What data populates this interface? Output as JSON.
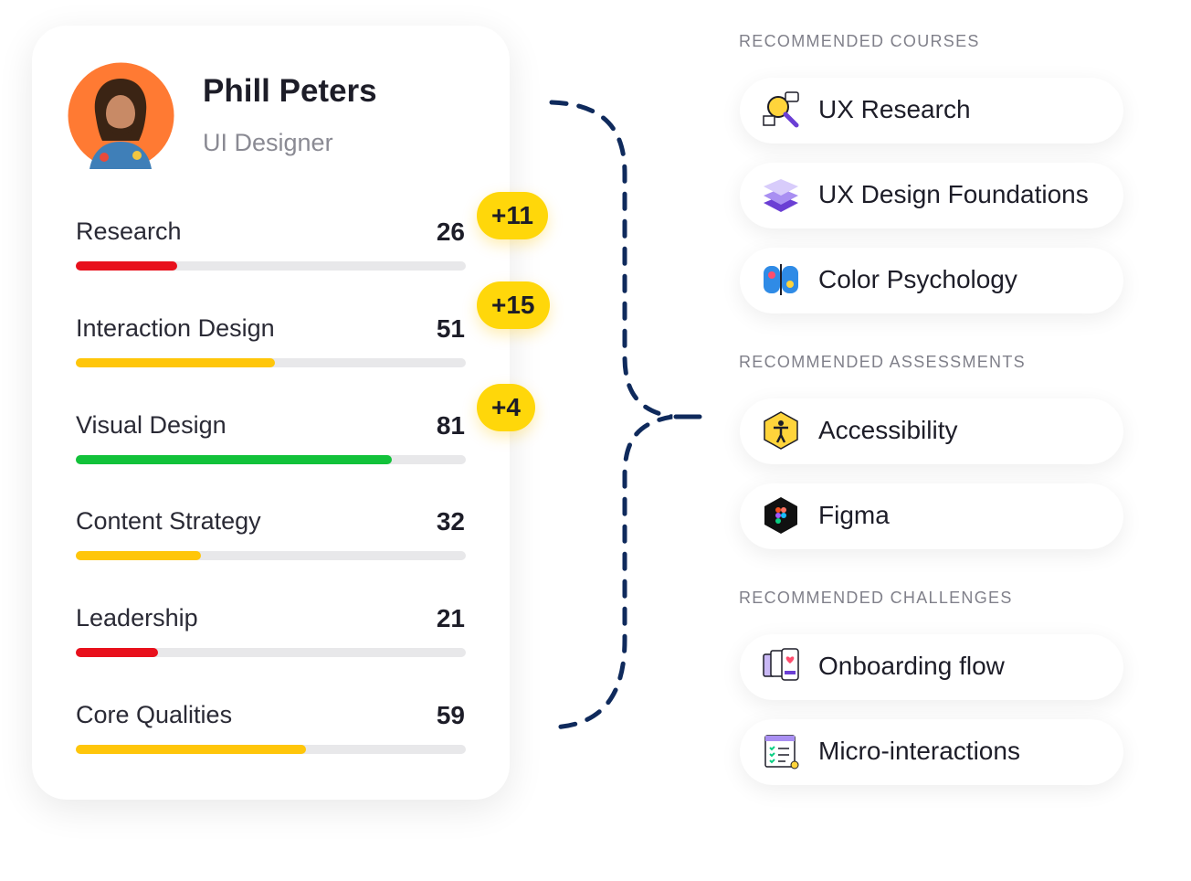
{
  "profile": {
    "name": "Phill Peters",
    "role": "UI Designer"
  },
  "skills": [
    {
      "label": "Research",
      "value": 26,
      "color": "#e8101c"
    },
    {
      "label": "Interaction Design",
      "value": 51,
      "color": "#ffc60a"
    },
    {
      "label": "Visual Design",
      "value": 81,
      "color": "#12c23a"
    },
    {
      "label": "Content Strategy",
      "value": 32,
      "color": "#ffc60a"
    },
    {
      "label": "Leadership",
      "value": 21,
      "color": "#e8101c"
    },
    {
      "label": "Core Qualities",
      "value": 59,
      "color": "#ffc60a"
    }
  ],
  "gains": [
    "+11",
    "+15",
    "+4"
  ],
  "sections": [
    {
      "title": "RECOMMENDED COURSES",
      "items": [
        "UX Research",
        "UX Design Foundations",
        "Color Psychology"
      ]
    },
    {
      "title": "RECOMMENDED ASSESSMENTS",
      "items": [
        "Accessibility",
        "Figma"
      ]
    },
    {
      "title": "RECOMMENDED CHALLENGES",
      "items": [
        "Onboarding flow",
        "Micro-interactions"
      ]
    }
  ]
}
